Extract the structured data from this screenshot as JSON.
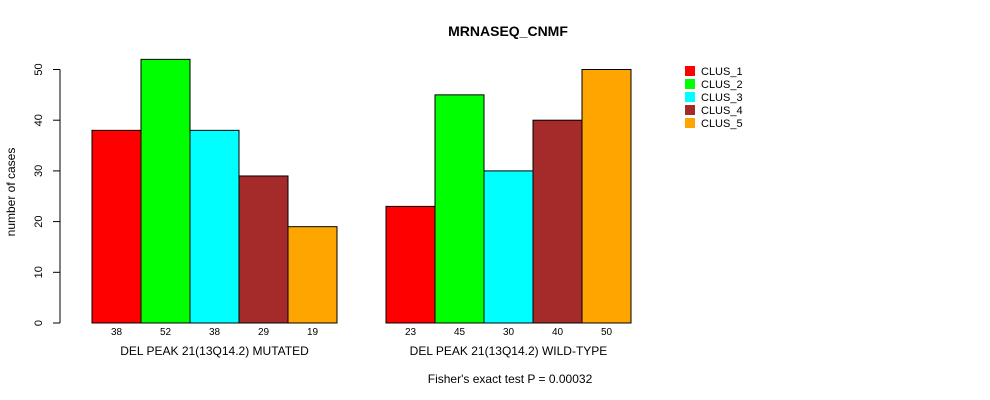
{
  "chart_data": {
    "type": "bar",
    "title": "MRNASEQ_CNMF",
    "ylabel": "number of cases",
    "xlabel": "",
    "footnote": "Fisher's exact test P = 0.00032",
    "ylim": [
      0,
      52
    ],
    "yticks": [
      0,
      10,
      20,
      30,
      40,
      50
    ],
    "grid": false,
    "legend_position": "top-right",
    "groups": [
      {
        "label": "DEL PEAK 21(13Q14.2) MUTATED",
        "values": [
          38,
          52,
          38,
          29,
          19
        ]
      },
      {
        "label": "DEL PEAK 21(13Q14.2) WILD-TYPE",
        "values": [
          23,
          45,
          30,
          40,
          50
        ]
      }
    ],
    "series": [
      {
        "name": "CLUS_1",
        "color": "#ff0000"
      },
      {
        "name": "CLUS_2",
        "color": "#00ff00"
      },
      {
        "name": "CLUS_3",
        "color": "#00ffff"
      },
      {
        "name": "CLUS_4",
        "color": "#a52a2a"
      },
      {
        "name": "CLUS_5",
        "color": "#ffa500"
      }
    ]
  }
}
